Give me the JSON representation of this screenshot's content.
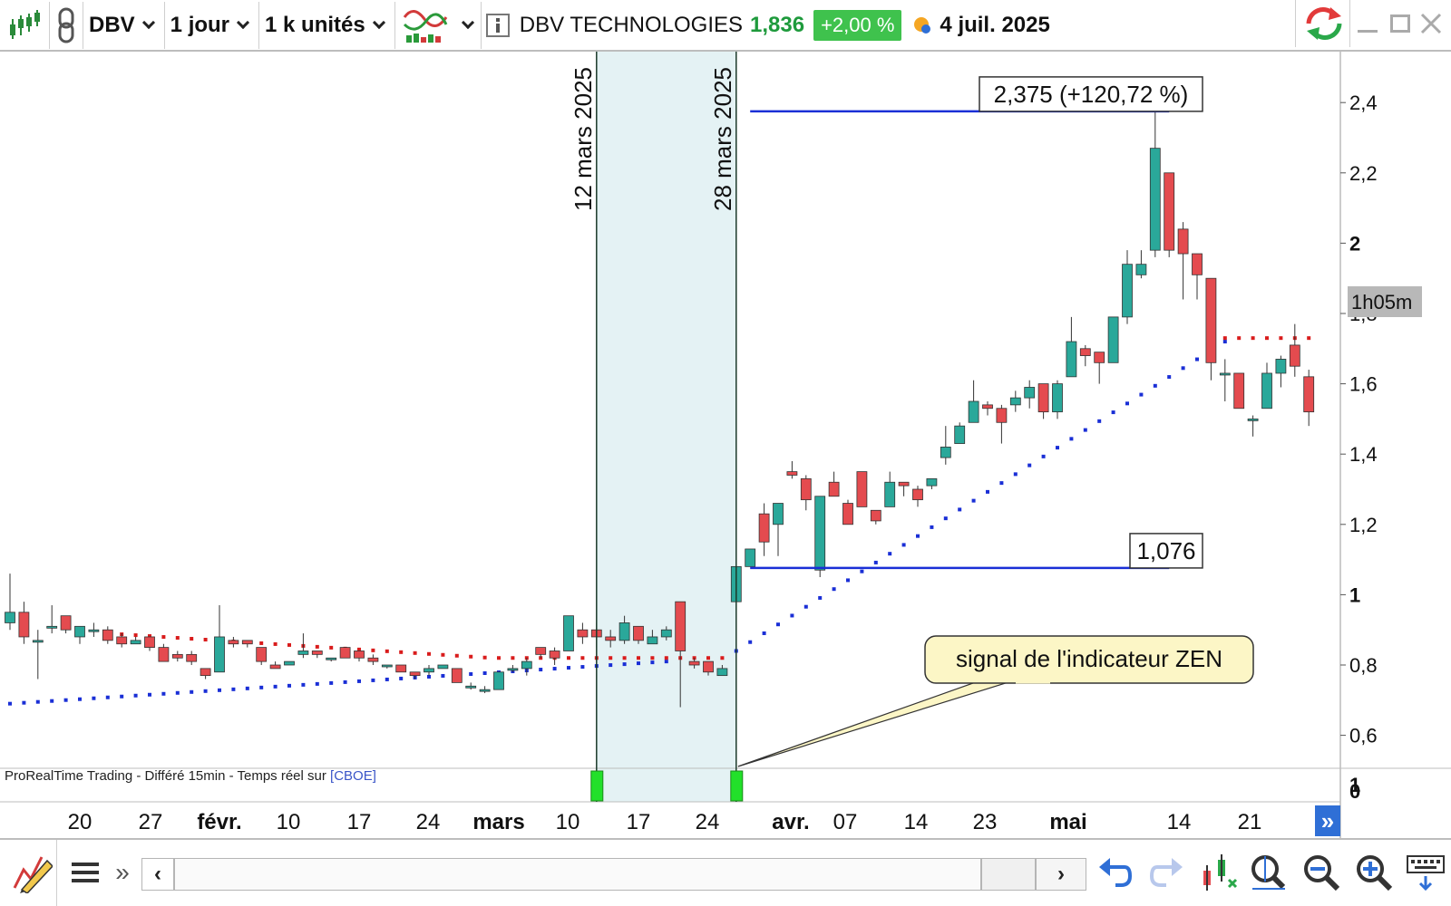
{
  "toolbar": {
    "symbol": "DBV",
    "timeframe": "1 jour",
    "units": "1 k unités",
    "instrument_name": "DBV TECHNOLOGIES",
    "price": "1,836",
    "change": "+2,00 %",
    "date": "4 juil. 2025"
  },
  "chart": {
    "vlines": [
      "12 mars 2025",
      "28 mars 2025"
    ],
    "high_label": "2,375 (+120,72 %)",
    "low_label": "1,076",
    "callout": "signal de l'indicateur ZEN",
    "footer_text": "ProRealTime Trading - Différé 15min - Temps réel sur",
    "footer_link": "[CBOE]",
    "timer_label": "1h05m",
    "indicator_axis_labels": [
      "1",
      "0"
    ]
  },
  "chart_data": {
    "type": "candlestick",
    "title": "DBV TECHNOLOGIES",
    "ylim": [
      0.5,
      2.5
    ],
    "y_ticks": [
      "0,6",
      "0,8",
      "1",
      "1,2",
      "1,4",
      "1,6",
      "1,8",
      "2",
      "2,2",
      "2,4"
    ],
    "x_tick_labels": [
      "20",
      "27",
      "févr.",
      "10",
      "17",
      "24",
      "mars",
      "10",
      "17",
      "24",
      "avr.",
      "07",
      "14",
      "23",
      "mai",
      "14",
      "21"
    ],
    "colors": {
      "up": "#2aa89a",
      "down": "#e44b4f",
      "trail_up": "#1a2fd6",
      "trail_down": "#d91c1c",
      "signal": "#22e02a",
      "guide_line": "#1a2fd6",
      "shade": "#e4f2f4"
    },
    "candles": [
      [
        0.92,
        0.95,
        1.06,
        0.9
      ],
      [
        0.95,
        0.88,
        0.98,
        0.86
      ],
      [
        0.87,
        0.87,
        0.9,
        0.76
      ],
      [
        0.91,
        0.91,
        0.97,
        0.89
      ],
      [
        0.94,
        0.9,
        0.94,
        0.89
      ],
      [
        0.88,
        0.91,
        0.91,
        0.86
      ],
      [
        0.9,
        0.9,
        0.92,
        0.88
      ],
      [
        0.9,
        0.87,
        0.91,
        0.86
      ],
      [
        0.88,
        0.86,
        0.89,
        0.85
      ],
      [
        0.86,
        0.87,
        0.88,
        0.86
      ],
      [
        0.88,
        0.85,
        0.88,
        0.84
      ],
      [
        0.85,
        0.81,
        0.86,
        0.81
      ],
      [
        0.83,
        0.82,
        0.84,
        0.81
      ],
      [
        0.83,
        0.81,
        0.84,
        0.8
      ],
      [
        0.79,
        0.77,
        0.79,
        0.76
      ],
      [
        0.78,
        0.88,
        0.97,
        0.78
      ],
      [
        0.87,
        0.86,
        0.88,
        0.85
      ],
      [
        0.87,
        0.86,
        0.87,
        0.85
      ],
      [
        0.85,
        0.81,
        0.85,
        0.8
      ],
      [
        0.8,
        0.79,
        0.81,
        0.79
      ],
      [
        0.8,
        0.81,
        0.81,
        0.8
      ],
      [
        0.83,
        0.84,
        0.89,
        0.82
      ],
      [
        0.84,
        0.83,
        0.84,
        0.82
      ],
      [
        0.82,
        0.82,
        0.82,
        0.81
      ],
      [
        0.85,
        0.82,
        0.85,
        0.82
      ],
      [
        0.84,
        0.82,
        0.84,
        0.81
      ],
      [
        0.82,
        0.81,
        0.83,
        0.8
      ],
      [
        0.8,
        0.8,
        0.8,
        0.79
      ],
      [
        0.8,
        0.78,
        0.8,
        0.78
      ],
      [
        0.78,
        0.77,
        0.78,
        0.76
      ],
      [
        0.78,
        0.79,
        0.8,
        0.77
      ],
      [
        0.79,
        0.8,
        0.8,
        0.79
      ],
      [
        0.79,
        0.75,
        0.79,
        0.75
      ],
      [
        0.74,
        0.74,
        0.75,
        0.73
      ],
      [
        0.73,
        0.73,
        0.74,
        0.72
      ],
      [
        0.73,
        0.78,
        0.78,
        0.73
      ],
      [
        0.79,
        0.79,
        0.8,
        0.78
      ],
      [
        0.79,
        0.81,
        0.82,
        0.77
      ],
      [
        0.85,
        0.83,
        0.85,
        0.82
      ],
      [
        0.84,
        0.82,
        0.85,
        0.8
      ],
      [
        0.84,
        0.94,
        0.94,
        0.84
      ],
      [
        0.9,
        0.88,
        0.92,
        0.86
      ],
      [
        0.9,
        0.88,
        0.92,
        0.85
      ],
      [
        0.88,
        0.87,
        0.9,
        0.85
      ],
      [
        0.87,
        0.92,
        0.94,
        0.86
      ],
      [
        0.91,
        0.87,
        0.91,
        0.86
      ],
      [
        0.86,
        0.88,
        0.9,
        0.86
      ],
      [
        0.88,
        0.9,
        0.91,
        0.87
      ],
      [
        0.98,
        0.84,
        0.98,
        0.68
      ],
      [
        0.81,
        0.8,
        0.82,
        0.79
      ],
      [
        0.81,
        0.78,
        0.81,
        0.77
      ],
      [
        0.77,
        0.79,
        0.8,
        0.77
      ],
      [
        0.98,
        1.08,
        1.08,
        0.98
      ],
      [
        1.08,
        1.13,
        1.13,
        1.08
      ],
      [
        1.23,
        1.15,
        1.26,
        1.11
      ],
      [
        1.2,
        1.26,
        1.26,
        1.11
      ],
      [
        1.35,
        1.34,
        1.38,
        1.33
      ],
      [
        1.33,
        1.27,
        1.34,
        1.24
      ],
      [
        1.07,
        1.28,
        1.28,
        1.05
      ],
      [
        1.32,
        1.28,
        1.35,
        1.28
      ],
      [
        1.26,
        1.2,
        1.27,
        1.2
      ],
      [
        1.35,
        1.25,
        1.35,
        1.25
      ],
      [
        1.24,
        1.21,
        1.24,
        1.2
      ],
      [
        1.25,
        1.32,
        1.35,
        1.25
      ],
      [
        1.32,
        1.31,
        1.32,
        1.28
      ],
      [
        1.3,
        1.27,
        1.31,
        1.25
      ],
      [
        1.31,
        1.33,
        1.33,
        1.3
      ],
      [
        1.39,
        1.42,
        1.48,
        1.37
      ],
      [
        1.43,
        1.48,
        1.49,
        1.43
      ],
      [
        1.49,
        1.55,
        1.61,
        1.49
      ],
      [
        1.54,
        1.53,
        1.55,
        1.51
      ],
      [
        1.53,
        1.49,
        1.54,
        1.43
      ],
      [
        1.54,
        1.56,
        1.58,
        1.52
      ],
      [
        1.56,
        1.59,
        1.61,
        1.53
      ],
      [
        1.6,
        1.52,
        1.6,
        1.5
      ],
      [
        1.52,
        1.6,
        1.61,
        1.5
      ],
      [
        1.62,
        1.72,
        1.79,
        1.62
      ],
      [
        1.7,
        1.68,
        1.71,
        1.65
      ],
      [
        1.69,
        1.66,
        1.69,
        1.6
      ],
      [
        1.66,
        1.79,
        1.79,
        1.66
      ],
      [
        1.79,
        1.94,
        1.98,
        1.77
      ],
      [
        1.91,
        1.94,
        1.98,
        1.9
      ],
      [
        1.98,
        2.27,
        2.375,
        1.96
      ],
      [
        2.2,
        1.98,
        2.2,
        1.96
      ],
      [
        2.04,
        1.97,
        2.06,
        1.84
      ],
      [
        1.97,
        1.91,
        1.97,
        1.84
      ],
      [
        1.9,
        1.66,
        1.9,
        1.61
      ],
      [
        1.63,
        1.63,
        1.67,
        1.55
      ],
      [
        1.63,
        1.53,
        1.63,
        1.53
      ],
      [
        1.5,
        1.5,
        1.51,
        1.45
      ],
      [
        1.53,
        1.63,
        1.66,
        1.53
      ],
      [
        1.63,
        1.67,
        1.68,
        1.59
      ],
      [
        1.71,
        1.65,
        1.77,
        1.62
      ],
      [
        1.62,
        1.52,
        1.64,
        1.48
      ]
    ],
    "trail_start": 0.69,
    "trail_segments": [
      {
        "from": 0,
        "to": 47,
        "end": 0.81,
        "direction": "up"
      },
      {
        "from": 7,
        "to": 51,
        "value": 0.82,
        "direction": "down",
        "start": 0.89
      },
      {
        "from": 52,
        "to": 87,
        "start": 0.84,
        "end": 1.72,
        "direction": "up"
      },
      {
        "from": 87,
        "to": 93,
        "value": 1.73,
        "direction": "down"
      }
    ],
    "shaded_range": [
      42,
      52
    ],
    "signal_bars": [
      42,
      52
    ],
    "high_line": {
      "value": 2.375,
      "from_bar": 53,
      "to_bar": 83
    },
    "low_line": {
      "value": 1.076,
      "from_bar": 53,
      "to_bar": 83
    }
  }
}
